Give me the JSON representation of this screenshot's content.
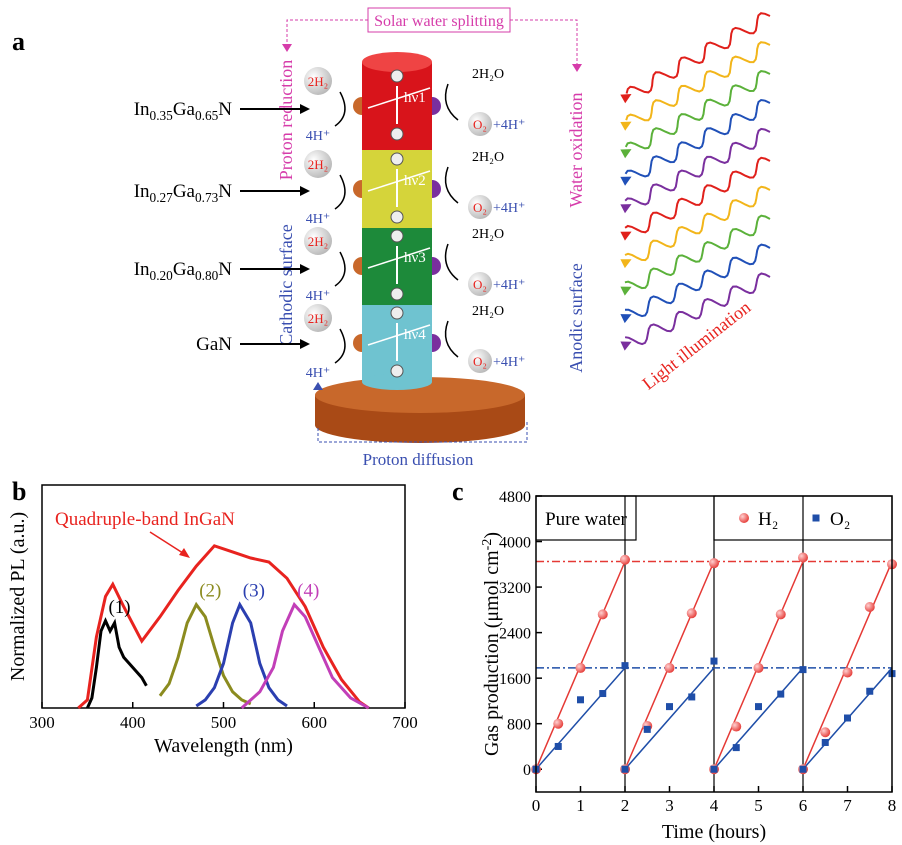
{
  "diagram": {
    "panel_label": "a",
    "title": "Solar water splitting",
    "left_top": "Proton reduction",
    "left_bottom": "Cathodic surface",
    "right_top": "Water oxidation",
    "right_bottom": "Anodic surface",
    "illumination": "Light illumination",
    "bottom": "Proton diffusion",
    "layers": [
      {
        "label_parts": [
          "In",
          "0.35",
          "Ga",
          "0.65",
          "N"
        ],
        "photon": "hν1",
        "h2": "2H₂",
        "proton": "4H⁺",
        "water": "2H₂O",
        "oxygen": "O₂",
        "oxygen_rest": "+4H⁺"
      },
      {
        "label_parts": [
          "In",
          "0.27",
          "Ga",
          "0.73",
          "N"
        ],
        "photon": "hν2",
        "h2": "2H₂",
        "proton": "4H⁺",
        "water": "2H₂O",
        "oxygen": "O₂",
        "oxygen_rest": "+4H⁺"
      },
      {
        "label_parts": [
          "In",
          "0.20",
          "Ga",
          "0.80",
          "N"
        ],
        "photon": "hν3",
        "h2": "2H₂",
        "proton": "4H⁺",
        "water": "2H₂O",
        "oxygen": "O₂",
        "oxygen_rest": "+4H⁺"
      },
      {
        "label_parts": [
          "GaN"
        ],
        "photon": "hν4",
        "h2": "2H₂",
        "proton": "4H⁺",
        "water": "2H₂O",
        "oxygen": "O₂",
        "oxygen_rest": "+4H⁺"
      }
    ]
  },
  "chart_data": [
    {
      "type": "line",
      "panel_label": "b",
      "xlabel": "Wavelength (nm)",
      "ylabel": "Normalized PL (a.u.)",
      "xlim": [
        300,
        700
      ],
      "ylim": [
        0,
        1.1
      ],
      "xticks": [
        300,
        400,
        500,
        600,
        700
      ],
      "series": [
        {
          "name": "Quadruple-band InGaN",
          "color": "#e8231f",
          "x": [
            340,
            350,
            360,
            370,
            378,
            390,
            410,
            430,
            450,
            470,
            490,
            510,
            530,
            550,
            570,
            590,
            610,
            630,
            650,
            660
          ],
          "values": [
            0,
            0.04,
            0.35,
            0.55,
            0.61,
            0.5,
            0.33,
            0.45,
            0.58,
            0.7,
            0.8,
            0.77,
            0.74,
            0.72,
            0.64,
            0.5,
            0.3,
            0.14,
            0.03,
            0
          ]
        },
        {
          "name": "(1)",
          "color": "#000000",
          "x": [
            350,
            355,
            360,
            365,
            370,
            375,
            380,
            385,
            390,
            400,
            410,
            415
          ],
          "values": [
            0,
            0.05,
            0.2,
            0.38,
            0.43,
            0.38,
            0.42,
            0.3,
            0.25,
            0.2,
            0.15,
            0.11
          ]
        },
        {
          "name": "(2)",
          "color": "#8b8b1f",
          "x": [
            430,
            440,
            450,
            460,
            470,
            480,
            490,
            500,
            510,
            520,
            530
          ],
          "values": [
            0.06,
            0.12,
            0.25,
            0.42,
            0.51,
            0.45,
            0.3,
            0.16,
            0.08,
            0.04,
            0.02
          ]
        },
        {
          "name": "(3)",
          "color": "#2b3fb0",
          "x": [
            470,
            480,
            490,
            500,
            510,
            518,
            530,
            540,
            550,
            560,
            570
          ],
          "values": [
            0.01,
            0.04,
            0.1,
            0.22,
            0.42,
            0.51,
            0.42,
            0.22,
            0.1,
            0.04,
            0.01
          ]
        },
        {
          "name": "(4)",
          "color": "#c23fb8",
          "x": [
            520,
            540,
            555,
            565,
            578,
            590,
            605,
            620,
            640,
            660
          ],
          "values": [
            0,
            0.08,
            0.2,
            0.38,
            0.51,
            0.45,
            0.3,
            0.15,
            0.05,
            0
          ]
        }
      ]
    },
    {
      "type": "scatter",
      "panel_label": "c",
      "xlabel": "Time (hours)",
      "ylabel_parts": [
        "Gas production (μmol cm",
        "-2",
        ")"
      ],
      "annotation": "Pure water",
      "xlim": [
        0,
        8
      ],
      "ylim": [
        -400,
        4800
      ],
      "xticks": [
        0,
        1,
        2,
        3,
        4,
        5,
        6,
        7,
        8
      ],
      "yticks": [
        0,
        800,
        1600,
        2400,
        3200,
        4000,
        4800
      ],
      "vlines": [
        2,
        4,
        6
      ],
      "series": [
        {
          "name": "H₂",
          "color": "#e53935",
          "marker": "circle",
          "x": [
            0,
            0.5,
            1,
            1.5,
            2,
            2,
            2.5,
            3,
            3.5,
            4,
            4,
            4.5,
            5,
            5.5,
            6,
            6,
            6.5,
            7,
            7.5,
            8
          ],
          "values": [
            0,
            800,
            1780,
            2720,
            3680,
            0,
            760,
            1780,
            2740,
            3620,
            0,
            750,
            1780,
            2720,
            3720,
            0,
            650,
            1700,
            2850,
            3600
          ]
        },
        {
          "name": "O₂",
          "color": "#1f4ea8",
          "marker": "square",
          "x": [
            0,
            0.5,
            1,
            1.5,
            2,
            2,
            2.5,
            3,
            3.5,
            4,
            4,
            4.5,
            5,
            5.5,
            6,
            6,
            6.5,
            7,
            7.5,
            8
          ],
          "values": [
            0,
            400,
            1220,
            1330,
            1820,
            0,
            700,
            1100,
            1270,
            1900,
            0,
            380,
            1100,
            1320,
            1750,
            0,
            470,
            900,
            1370,
            1680
          ]
        }
      ],
      "fits": [
        {
          "color": "#e53935",
          "x": [
            0,
            2,
            null,
            2,
            4,
            null,
            4,
            6,
            null,
            6,
            8
          ],
          "values": [
            0,
            3650,
            null,
            0,
            3650,
            null,
            0,
            3650,
            null,
            0,
            3650
          ]
        },
        {
          "color": "#1f4ea8",
          "x": [
            0,
            2,
            null,
            2,
            4,
            null,
            4,
            6,
            null,
            6,
            8
          ],
          "values": [
            0,
            1780,
            null,
            0,
            1780,
            null,
            0,
            1780,
            null,
            0,
            1780
          ]
        }
      ],
      "hlines": [
        {
          "value": 3650,
          "color": "#e53935"
        },
        {
          "value": 1780,
          "color": "#1f4ea8"
        }
      ]
    }
  ]
}
